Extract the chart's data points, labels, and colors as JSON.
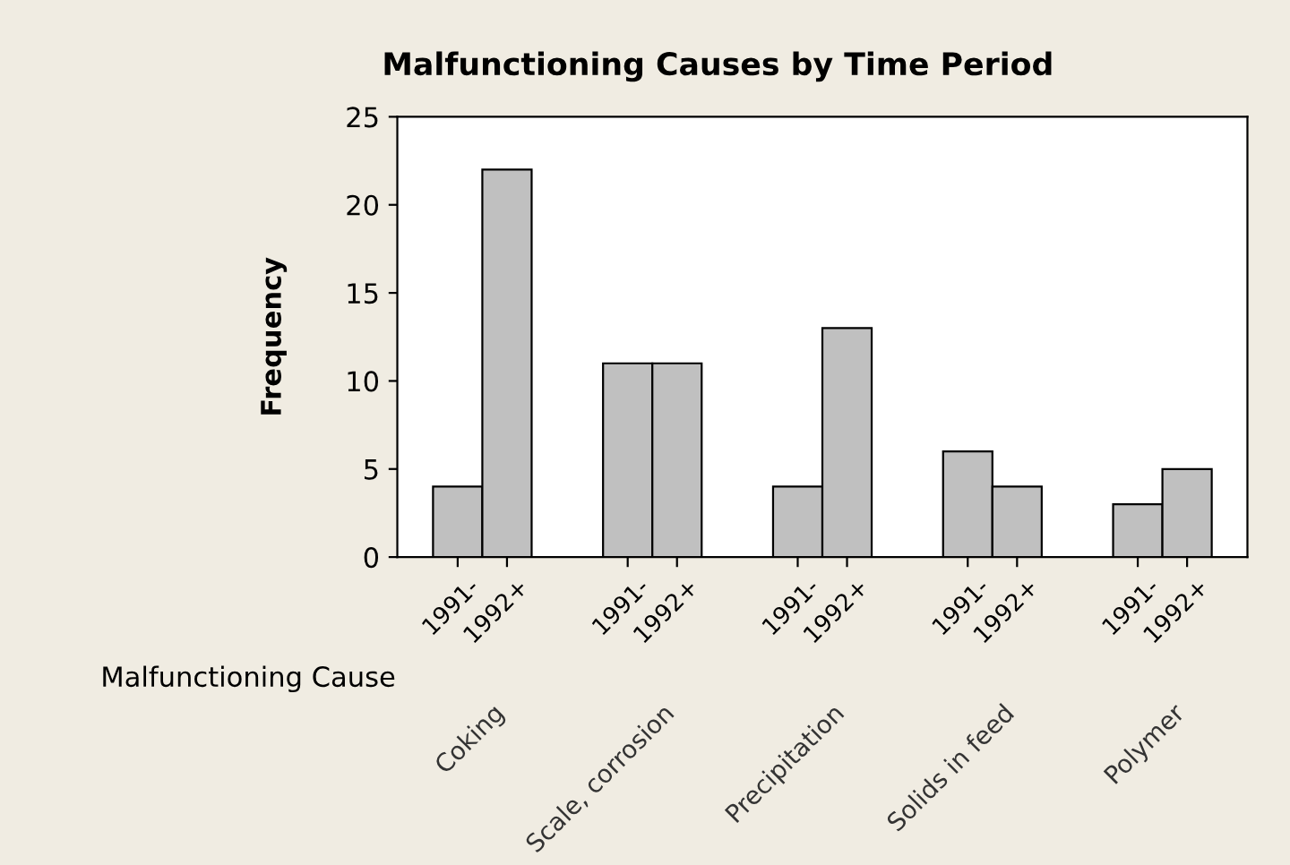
{
  "chart_data": {
    "type": "bar",
    "title": "Malfunctioning Causes by Time Period",
    "ylabel": "Frequency",
    "xlabel": "Malfunctioning Cause",
    "categories": [
      "Coking",
      "Scale, corrosion",
      "Precipitation",
      "Solids in feed",
      "Polymer"
    ],
    "series": [
      {
        "name": "1991-",
        "color": "#c0c0c0",
        "values": [
          4,
          11,
          4,
          6,
          3
        ]
      },
      {
        "name": "1992+",
        "color": "#c0c0c0",
        "values": [
          22,
          11,
          13,
          4,
          5
        ]
      }
    ],
    "ylim": [
      0,
      25
    ],
    "yticks": [
      0,
      5,
      10,
      15,
      20,
      25
    ],
    "grid": false,
    "legend": "bottom"
  }
}
